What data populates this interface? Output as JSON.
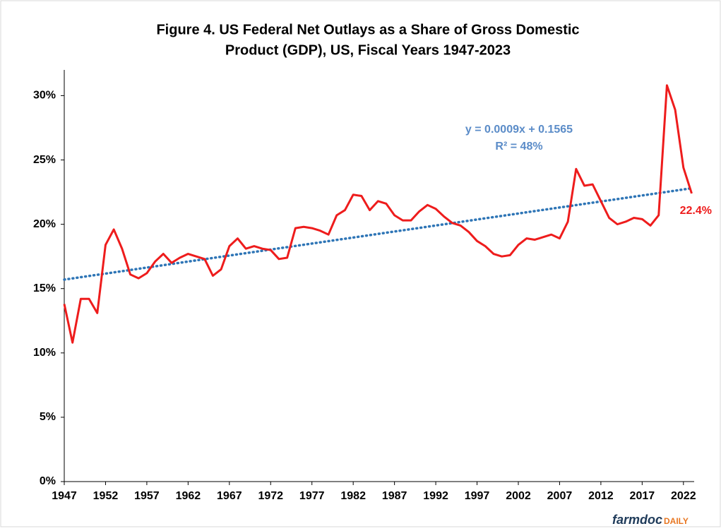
{
  "chart_data": {
    "type": "line",
    "title": [
      "Figure 4.  US Federal Net Outlays as a Share of Gross Domestic",
      "Product (GDP), US, Fiscal Years 1947-2023"
    ],
    "x": [
      1947,
      1948,
      1949,
      1950,
      1951,
      1952,
      1953,
      1954,
      1955,
      1956,
      1957,
      1958,
      1959,
      1960,
      1961,
      1962,
      1963,
      1964,
      1965,
      1966,
      1967,
      1968,
      1969,
      1970,
      1971,
      1972,
      1973,
      1974,
      1975,
      1976,
      1977,
      1978,
      1979,
      1980,
      1981,
      1982,
      1983,
      1984,
      1985,
      1986,
      1987,
      1988,
      1989,
      1990,
      1991,
      1992,
      1993,
      1994,
      1995,
      1996,
      1997,
      1998,
      1999,
      2000,
      2001,
      2002,
      2003,
      2004,
      2005,
      2006,
      2007,
      2008,
      2009,
      2010,
      2011,
      2012,
      2013,
      2014,
      2015,
      2016,
      2017,
      2018,
      2019,
      2020,
      2021,
      2022,
      2023
    ],
    "series": [
      {
        "color": "#ee1c1c",
        "values": [
          13.8,
          10.8,
          14.2,
          14.2,
          13.1,
          18.4,
          19.6,
          18.1,
          16.1,
          15.8,
          16.2,
          17.1,
          17.7,
          17.0,
          17.4,
          17.7,
          17.5,
          17.3,
          16.0,
          16.5,
          18.3,
          18.9,
          18.1,
          18.3,
          18.1,
          18.0,
          17.3,
          17.4,
          19.7,
          19.8,
          19.7,
          19.5,
          19.2,
          20.7,
          21.1,
          22.3,
          22.2,
          21.1,
          21.8,
          21.6,
          20.7,
          20.3,
          20.3,
          21.0,
          21.5,
          21.2,
          20.6,
          20.1,
          19.9,
          19.4,
          18.7,
          18.3,
          17.7,
          17.5,
          17.6,
          18.4,
          18.9,
          18.8,
          19.0,
          19.2,
          18.9,
          20.2,
          24.3,
          23.0,
          23.1,
          21.8,
          20.5,
          20.0,
          20.2,
          20.5,
          20.4,
          19.9,
          20.7,
          30.8,
          28.9,
          24.4,
          22.4
        ]
      }
    ],
    "trendline": {
      "color": "#2e75b6",
      "x": [
        1947,
        2023
      ],
      "values": [
        15.7,
        22.8
      ]
    },
    "annotations": {
      "equation": [
        "y = 0.0009x + 0.1565",
        "R² = 48%"
      ],
      "last_label": "22.4%"
    },
    "xlim": [
      1947,
      2023.3
    ],
    "xticks": [
      1947,
      1952,
      1957,
      1962,
      1967,
      1972,
      1977,
      1982,
      1987,
      1992,
      1997,
      2002,
      2007,
      2012,
      2017,
      2022
    ],
    "ylim": [
      0,
      32
    ],
    "yticks": [
      {
        "value": 0,
        "label": "0%"
      },
      {
        "value": 5,
        "label": "5%"
      },
      {
        "value": 10,
        "label": "10%"
      },
      {
        "value": 15,
        "label": "15%"
      },
      {
        "value": 20,
        "label": "20%"
      },
      {
        "value": 25,
        "label": "25%"
      },
      {
        "value": 30,
        "label": "30%"
      }
    ],
    "logo": [
      "farmdoc",
      "DAILY"
    ]
  }
}
